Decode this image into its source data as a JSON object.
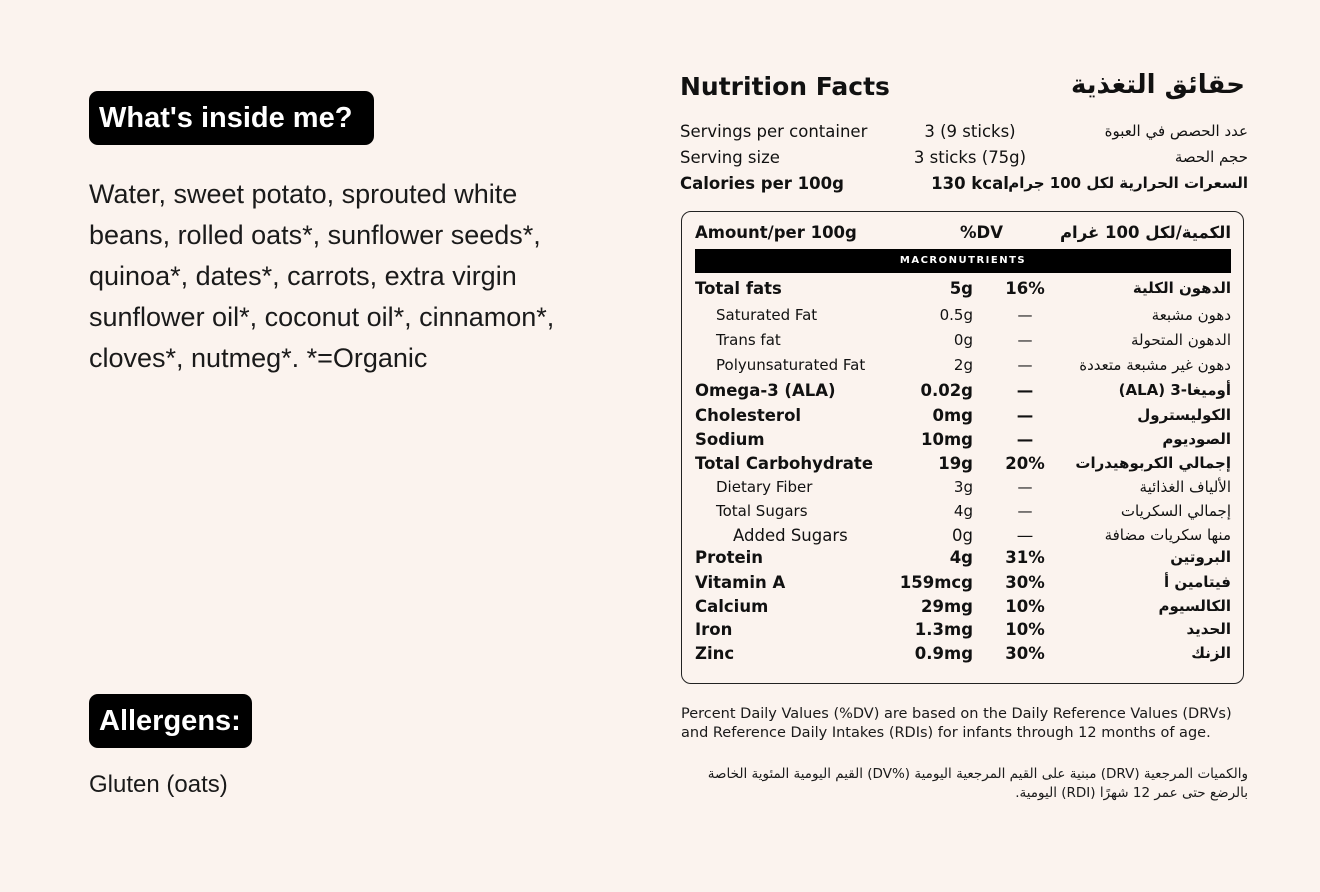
{
  "left": {
    "inside_heading": "What's inside me?",
    "ingredients": "Water, sweet potato, sprouted white beans, rolled oats*, sunflower seeds*, quinoa*, dates*, carrots, extra virgin sunflower oil*, coconut oil*, cinnamon*, cloves*, nutmeg*. *=Organic",
    "allergens_heading": "Allergens:",
    "allergens": "Gluten (oats)"
  },
  "nutrition": {
    "title": "Nutrition Facts",
    "title_ar": "حقائق التغذية",
    "servings": [
      {
        "en": "Servings per container",
        "val": "3 (9 sticks)",
        "ar": "عدد الحصص في العبوة",
        "bold": false
      },
      {
        "en": "Serving size",
        "val": "3 sticks (75g)",
        "ar": "حجم الحصة",
        "bold": false
      },
      {
        "en": "Calories per 100g",
        "val": "130 kcal",
        "ar": "السعرات الحرارية لكل 100 جرام",
        "bold": true
      }
    ],
    "header": {
      "en": "Amount/per 100g",
      "dv": "%DV",
      "ar": "الكمية/لكل 100 غرام"
    },
    "section": "MACRONUTRIENTS",
    "rows": [
      {
        "en": "Total fats",
        "amt": "5g",
        "pct": "16%",
        "ar": "الدهون الكلية",
        "style": "b"
      },
      {
        "en": "Saturated Fat",
        "amt": "0.5g",
        "pct": "—",
        "ar": "دهون مشبعة",
        "style": "sub"
      },
      {
        "en": "Trans fat",
        "amt": "0g",
        "pct": "—",
        "ar": "الدهون المتحولة",
        "style": "sub"
      },
      {
        "en": "Polyunsaturated Fat",
        "amt": "2g",
        "pct": "—",
        "ar": "دهون غير مشبعة متعددة",
        "style": "sub"
      },
      {
        "en": "Omega-3 (ALA)",
        "amt": "0.02g",
        "pct": "—",
        "ar": "أوميغا-3 (ALA)",
        "style": "b"
      },
      {
        "en": "Cholesterol",
        "amt": "0mg",
        "pct": "—",
        "ar": "الكوليسترول",
        "style": "b"
      },
      {
        "en": "Sodium",
        "amt": "10mg",
        "pct": "—",
        "ar": "الصوديوم",
        "style": "b"
      },
      {
        "en": "Total Carbohydrate",
        "amt": "19g",
        "pct": "20%",
        "ar": "إجمالي الكربوهيدرات",
        "style": "b"
      },
      {
        "en": "Dietary Fiber",
        "amt": "3g",
        "pct": "—",
        "ar": "الألياف الغذائية",
        "style": "sub"
      },
      {
        "en": "Total Sugars",
        "amt": "4g",
        "pct": "—",
        "ar": "إجمالي السكريات",
        "style": "sub"
      },
      {
        "en": "Added Sugars",
        "amt": "0g",
        "pct": "—",
        "ar": "منها سكريات مضافة",
        "style": "sub2"
      },
      {
        "en": "Protein",
        "amt": "4g",
        "pct": "31%",
        "ar": "البروتين",
        "style": "b"
      },
      {
        "en": "Vitamin A",
        "amt": "159mcg",
        "pct": "30%",
        "ar": "فيتامين أ",
        "style": "b"
      },
      {
        "en": "Calcium",
        "amt": "29mg",
        "pct": "10%",
        "ar": "الكالسيوم",
        "style": "b"
      },
      {
        "en": "Iron",
        "amt": "1.3mg",
        "pct": "10%",
        "ar": "الحديد",
        "style": "b"
      },
      {
        "en": "Zinc",
        "amt": "0.9mg",
        "pct": "30%",
        "ar": "الزنك",
        "style": "b"
      }
    ],
    "footnote": "Percent Daily Values (%DV) are based on the Daily Reference Values (DRVs) and Reference Daily Intakes (RDIs) for infants through 12 months of age.",
    "footnote_ar": "والكميات المرجعية (DRV) مبنية على القيم المرجعية اليومية (%DV) القيم اليومية المئوية الخاصة بالرضع حتى عمر 12 شهرًا (RDI) اليومية."
  }
}
